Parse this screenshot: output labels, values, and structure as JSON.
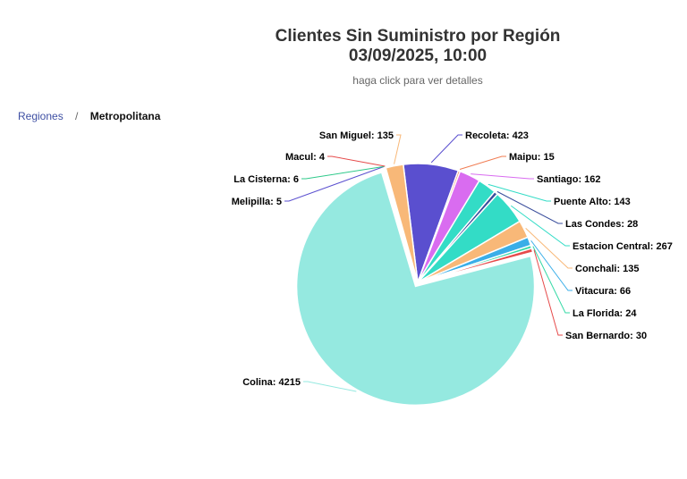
{
  "header": {
    "title_line1": "Clientes Sin Suministro por Región",
    "title_line2": "03/09/2025, 10:00",
    "subtitle": "haga click para ver detalles"
  },
  "breadcrumb": {
    "root": "Regiones",
    "separator": "/",
    "current": "Metropolitana"
  },
  "chart_data": {
    "type": "pie",
    "title": "Clientes Sin Suministro por Región 03/09/2025, 10:00",
    "subtitle": "haga click para ver detalles",
    "start_angle_deg": -7,
    "slices": [
      {
        "name": "Recoleta",
        "value": 423,
        "color": "#5a4fcf"
      },
      {
        "name": "Maipu",
        "value": 15,
        "color": "#f07c52"
      },
      {
        "name": "Santiago",
        "value": 162,
        "color": "#d96cf0"
      },
      {
        "name": "Puente Alto",
        "value": 143,
        "color": "#33dcc6"
      },
      {
        "name": "Las Condes",
        "value": 28,
        "color": "#3a4e9c"
      },
      {
        "name": "Estacion Central",
        "value": 267,
        "color": "#33dcc6"
      },
      {
        "name": "Conchali",
        "value": 135,
        "color": "#f8b878"
      },
      {
        "name": "Vitacura",
        "value": 66,
        "color": "#3aaee8"
      },
      {
        "name": "La Florida",
        "value": 24,
        "color": "#36d9a6"
      },
      {
        "name": "San Bernardo",
        "value": 30,
        "color": "#e64a4a"
      },
      {
        "name": "Colina",
        "value": 4215,
        "color": "#95e9e0"
      },
      {
        "name": "Melipilla",
        "value": 5,
        "color": "#5a4fcf"
      },
      {
        "name": "La Cisterna",
        "value": 6,
        "color": "#2ec98a"
      },
      {
        "name": "Macul",
        "value": 4,
        "color": "#e64a4a"
      },
      {
        "name": "San Miguel",
        "value": 135,
        "color": "#f8b878"
      }
    ]
  }
}
